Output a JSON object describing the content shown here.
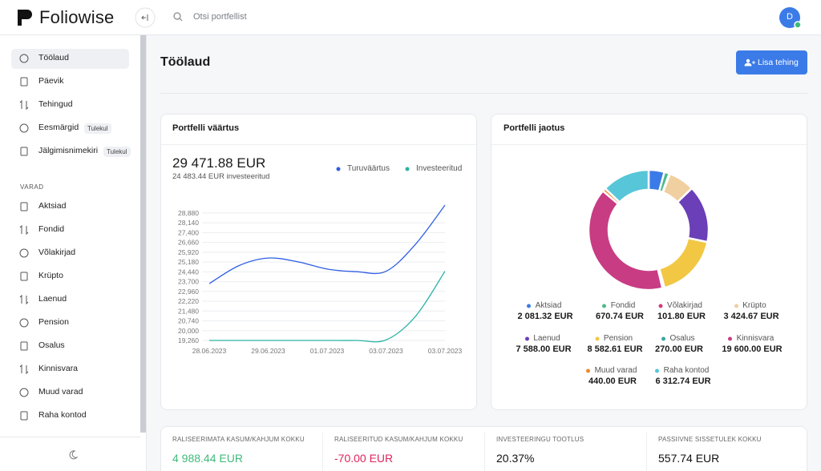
{
  "header": {
    "brand": "Foliowise",
    "search_placeholder": "Otsi portfellist",
    "avatar": "D"
  },
  "sidebar": {
    "items": [
      {
        "label": "Töölaud"
      },
      {
        "label": "Päevik"
      },
      {
        "label": "Tehingud"
      },
      {
        "label": "Eesmärgid",
        "badge": "Tulekul"
      },
      {
        "label": "Jälgimisnimekiri",
        "badge": "Tulekul"
      }
    ],
    "section": "VARAD",
    "assets": [
      {
        "label": "Aktsiad"
      },
      {
        "label": "Fondid"
      },
      {
        "label": "Võlakirjad"
      },
      {
        "label": "Krüpto"
      },
      {
        "label": "Laenud"
      },
      {
        "label": "Pension"
      },
      {
        "label": "Osalus"
      },
      {
        "label": "Kinnisvara"
      },
      {
        "label": "Muud varad"
      },
      {
        "label": "Raha kontod"
      }
    ]
  },
  "page": {
    "title": "Töölaud",
    "button": "Lisa tehing"
  },
  "chart_data": [
    {
      "type": "line",
      "title": "Portfelli väärtus",
      "summary": "29 471.88 EUR",
      "subtitle": "24 483.44 EUR investeeritud",
      "categories": [
        "28.06.2023",
        null,
        "29.06.2023",
        null,
        "01.07.2023",
        null,
        "03.07.2023",
        null,
        "03.07.2023"
      ],
      "series": [
        {
          "name": "Turuväärtus",
          "color": "#2f5fe3",
          "values": [
            23550,
            24900,
            25480,
            25200,
            24650,
            24450,
            24480,
            26520,
            29471.88
          ]
        },
        {
          "name": "Investeeritud",
          "color": "#2bb3a5",
          "values": [
            19260,
            19260,
            19260,
            19260,
            19260,
            19260,
            19300,
            21080,
            24483.44
          ]
        }
      ],
      "ylim": [
        19260,
        29600
      ],
      "yticks": [
        {
          "value": 19260,
          "label": "19,260"
        },
        {
          "value": 20000,
          "label": "20,000"
        },
        {
          "value": 20740,
          "label": "20,740"
        },
        {
          "value": 21480,
          "label": "21,480"
        },
        {
          "value": 22220,
          "label": "22,220"
        },
        {
          "value": 22960,
          "label": "22,960"
        },
        {
          "value": 23700,
          "label": "23,700"
        },
        {
          "value": 24440,
          "label": "24,440"
        },
        {
          "value": 25180,
          "label": "25,180"
        },
        {
          "value": 25920,
          "label": "25,920"
        },
        {
          "value": 26660,
          "label": "26,660"
        },
        {
          "value": 27400,
          "label": "27,400"
        },
        {
          "value": 28140,
          "label": "28,140"
        },
        {
          "value": 28880,
          "label": "28,880"
        }
      ],
      "grid": true
    },
    {
      "type": "pie",
      "title": "Portfelli jaotus",
      "donut": true,
      "categories": [
        "Aktsiad",
        "Fondid",
        "Võlakirjad",
        "Krüpto",
        "Laenud",
        "Pension",
        "Osalus",
        "Kinnisvara",
        "Muud varad",
        "Raha kontod"
      ],
      "values": [
        2081.32,
        670.74,
        101.8,
        3424.67,
        7588.0,
        8582.61,
        270.0,
        19600.0,
        440.0,
        6312.74
      ],
      "value_labels": [
        "2 081.32 EUR",
        "670.74 EUR",
        "101.80 EUR",
        "3 424.67 EUR",
        "7 588.00 EUR",
        "8 582.61 EUR",
        "270.00 EUR",
        "19 600.00 EUR",
        "440.00 EUR",
        "6 312.74 EUR"
      ],
      "colors": [
        "#3b7be8",
        "#4dbb8a",
        "#d63a78",
        "#f0cfa0",
        "#6a3fb8",
        "#f2c744",
        "#3aa6a0",
        "#c83c84",
        "#ed8a30",
        "#56c6d8"
      ]
    }
  ],
  "stats": [
    {
      "label": "RALISEERIMATA KASUM/KAHJUM KOKKU",
      "value": "4 988.44 EUR",
      "color": "#3fba7a"
    },
    {
      "label": "RALISEERITUD KASUM/KAHJUM KOKKU",
      "value": "-70.00 EUR",
      "color": "#e0245e"
    },
    {
      "label": "INVESTEERINGU TOOTLUS",
      "value": "20.37%",
      "color": "#111111"
    },
    {
      "label": "PASSIIVNE SISSETULEK KOKKU",
      "value": "557.74 EUR",
      "color": "#111111"
    }
  ]
}
